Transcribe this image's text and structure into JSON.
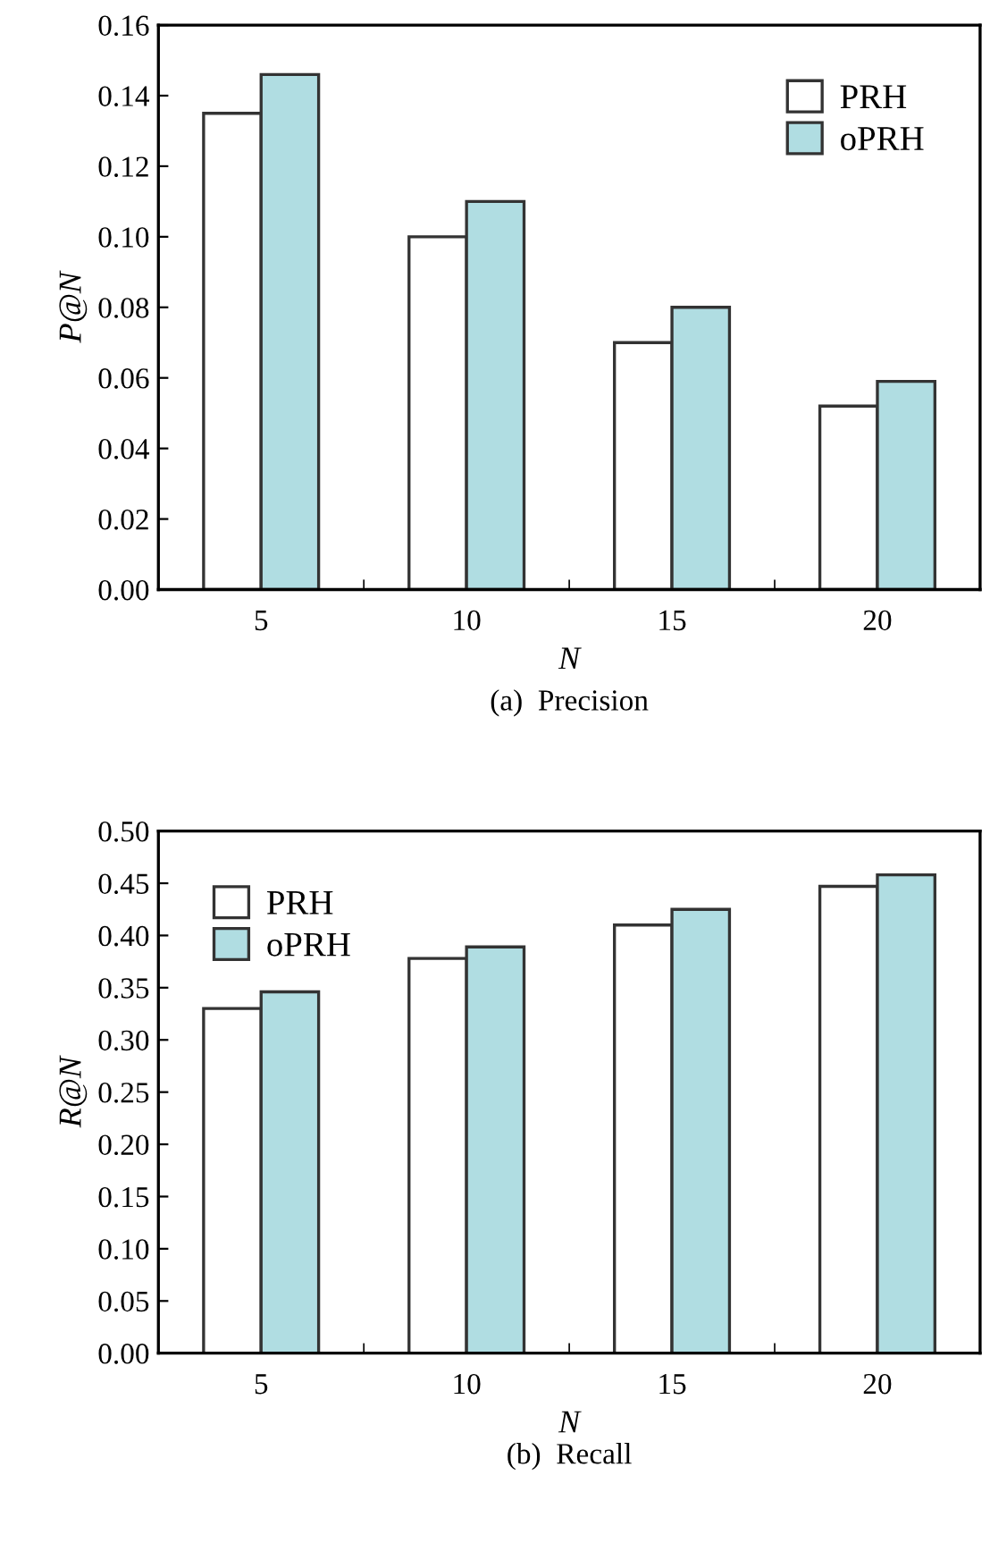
{
  "chart_data": [
    {
      "type": "bar",
      "title": "(a)  Precision",
      "xlabel": "N",
      "ylabel": "P@N",
      "categories": [
        "5",
        "10",
        "15",
        "20"
      ],
      "series": [
        {
          "name": "PRH",
          "color": "#ffffff",
          "values": [
            0.135,
            0.1,
            0.07,
            0.052
          ]
        },
        {
          "name": "oPRH",
          "color": "#b0dde2",
          "values": [
            0.146,
            0.11,
            0.08,
            0.059
          ]
        }
      ],
      "ylim": [
        0,
        0.16
      ],
      "yticks": [
        {
          "value": 0,
          "label": "0.00"
        },
        {
          "value": 0.02,
          "label": "0.02"
        },
        {
          "value": 0.04,
          "label": "0.04"
        },
        {
          "value": 0.06,
          "label": "0.06"
        },
        {
          "value": 0.08,
          "label": "0.08"
        },
        {
          "value": 0.1,
          "label": "0.10"
        },
        {
          "value": 0.12,
          "label": "0.12"
        },
        {
          "value": 0.14,
          "label": "0.14"
        },
        {
          "value": 0.16,
          "label": "0.16"
        }
      ],
      "legend": "top right",
      "grid": false
    },
    {
      "type": "bar",
      "title": "(b)  Recall",
      "xlabel": "N",
      "ylabel": "R@N",
      "categories": [
        "5",
        "10",
        "15",
        "20"
      ],
      "series": [
        {
          "name": "PRH",
          "color": "#ffffff",
          "values": [
            0.33,
            0.378,
            0.41,
            0.447
          ]
        },
        {
          "name": "oPRH",
          "color": "#b0dde2",
          "values": [
            0.346,
            0.389,
            0.425,
            0.458
          ]
        }
      ],
      "ylim": [
        0,
        0.5
      ],
      "yticks": [
        {
          "value": 0,
          "label": "0.00"
        },
        {
          "value": 0.05,
          "label": "0.05"
        },
        {
          "value": 0.1,
          "label": "0.10"
        },
        {
          "value": 0.15,
          "label": "0.15"
        },
        {
          "value": 0.2,
          "label": "0.20"
        },
        {
          "value": 0.25,
          "label": "0.25"
        },
        {
          "value": 0.3,
          "label": "0.30"
        },
        {
          "value": 0.35,
          "label": "0.35"
        },
        {
          "value": 0.4,
          "label": "0.40"
        },
        {
          "value": 0.45,
          "label": "0.45"
        },
        {
          "value": 0.5,
          "label": "0.50"
        }
      ],
      "legend": "top left",
      "grid": false
    }
  ]
}
